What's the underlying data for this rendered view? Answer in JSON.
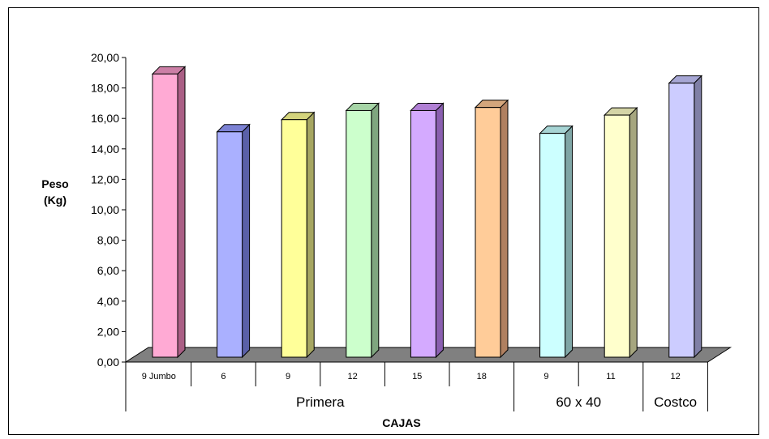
{
  "chart_data": {
    "type": "bar",
    "title": "",
    "ylabel_lines": [
      "Peso",
      "(Kg)"
    ],
    "xlabel": "CAJAS",
    "ylim": [
      0,
      20
    ],
    "ytick_step": 2,
    "ytick_labels": [
      "0,00",
      "2,00",
      "4,00",
      "6,00",
      "8,00",
      "10,00",
      "12,00",
      "14,00",
      "16,00",
      "18,00",
      "20,00"
    ],
    "categories": [
      "9 Jumbo",
      "6",
      "9",
      "12",
      "15",
      "18",
      "9",
      "11",
      "12"
    ],
    "values": [
      18.6,
      14.8,
      15.6,
      16.2,
      16.2,
      16.4,
      14.7,
      15.9,
      18.0
    ],
    "groups": [
      {
        "label": "Primera",
        "start": 0,
        "end": 5
      },
      {
        "label": "60 x 40",
        "start": 6,
        "end": 7
      },
      {
        "label": "Costco",
        "start": 8,
        "end": 8
      }
    ],
    "colors": [
      {
        "front": "#ffaad4",
        "side": "#aa5f85",
        "top": "#cc7fa6"
      },
      {
        "front": "#aab0ff",
        "side": "#5a60a8",
        "top": "#7c82d4"
      },
      {
        "front": "#ffff99",
        "side": "#a6a662",
        "top": "#d4d47c"
      },
      {
        "front": "#ccffcc",
        "side": "#7fa67f",
        "top": "#a6d4a6"
      },
      {
        "front": "#d4aaff",
        "side": "#8a5fb0",
        "top": "#b07fd4"
      },
      {
        "front": "#ffcc99",
        "side": "#b08060",
        "top": "#d4a67c"
      },
      {
        "front": "#ccffff",
        "side": "#7fa6a6",
        "top": "#a6d4d4"
      },
      {
        "front": "#ffffcc",
        "side": "#a6a67f",
        "top": "#d4d4a6"
      },
      {
        "front": "#ccccff",
        "side": "#7f7fa6",
        "top": "#a6a6d4"
      }
    ],
    "floor_color": "#808080",
    "grid": false,
    "legend": "none"
  }
}
